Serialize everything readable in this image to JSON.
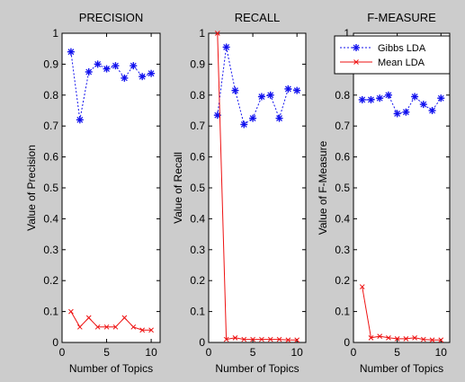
{
  "chart_data": [
    {
      "type": "line",
      "title": "PRECISION",
      "xlabel": "Number of Topics",
      "ylabel": "Value of Precision",
      "xlim": [
        0,
        11
      ],
      "ylim": [
        0,
        1
      ],
      "xticks": [
        "0",
        "5",
        "10"
      ],
      "yticks": [
        "0",
        "0.1",
        "0.2",
        "0.3",
        "0.4",
        "0.5",
        "0.6",
        "0.7",
        "0.8",
        "0.9",
        "1"
      ],
      "x": [
        1,
        2,
        3,
        4,
        5,
        6,
        7,
        8,
        9,
        10
      ],
      "series": [
        {
          "name": "Gibbs LDA",
          "color": "#1010ee",
          "style": "dotted",
          "marker": "star",
          "values": [
            0.94,
            0.72,
            0.875,
            0.9,
            0.885,
            0.895,
            0.855,
            0.895,
            0.86,
            0.87
          ]
        },
        {
          "name": "Mean LDA",
          "color": "#ee1111",
          "style": "solid",
          "marker": "x",
          "values": [
            0.1,
            0.05,
            0.08,
            0.05,
            0.05,
            0.05,
            0.08,
            0.05,
            0.04,
            0.04
          ]
        }
      ]
    },
    {
      "type": "line",
      "title": "RECALL",
      "xlabel": "Number of Topics",
      "ylabel": "Value of Recall",
      "xlim": [
        0,
        11
      ],
      "ylim": [
        0,
        1
      ],
      "xticks": [
        "0",
        "5",
        "10"
      ],
      "yticks": [
        "0",
        "0.1",
        "0.2",
        "0.3",
        "0.4",
        "0.5",
        "0.6",
        "0.7",
        "0.8",
        "0.9",
        "1"
      ],
      "x": [
        1,
        2,
        3,
        4,
        5,
        6,
        7,
        8,
        9,
        10
      ],
      "series": [
        {
          "name": "Gibbs LDA",
          "color": "#1010ee",
          "style": "dotted",
          "marker": "star",
          "values": [
            0.735,
            0.955,
            0.815,
            0.705,
            0.725,
            0.795,
            0.8,
            0.725,
            0.82,
            0.815
          ]
        },
        {
          "name": "Mean LDA",
          "color": "#ee1111",
          "style": "solid",
          "marker": "x",
          "values": [
            1.0,
            0.01,
            0.015,
            0.01,
            0.01,
            0.01,
            0.01,
            0.01,
            0.008,
            0.008
          ]
        }
      ]
    },
    {
      "type": "line",
      "title": "F-MEASURE",
      "xlabel": "Number of Topics",
      "ylabel": "Value of F-Measure",
      "xlim": [
        0,
        11
      ],
      "ylim": [
        0,
        1
      ],
      "xticks": [
        "0",
        "5",
        "10"
      ],
      "yticks": [
        "0",
        "0.1",
        "0.2",
        "0.3",
        "0.4",
        "0.5",
        "0.6",
        "0.7",
        "0.8",
        "0.9",
        "1"
      ],
      "x": [
        1,
        2,
        3,
        4,
        5,
        6,
        7,
        8,
        9,
        10
      ],
      "legend": {
        "placement": "top-right",
        "entries": [
          "Gibbs LDA",
          "Mean LDA"
        ]
      },
      "series": [
        {
          "name": "Gibbs LDA",
          "color": "#1010ee",
          "style": "dotted",
          "marker": "star",
          "values": [
            0.785,
            0.785,
            0.79,
            0.8,
            0.74,
            0.745,
            0.795,
            0.77,
            0.75,
            0.79
          ]
        },
        {
          "name": "Mean LDA",
          "color": "#ee1111",
          "style": "solid",
          "marker": "x",
          "values": [
            0.18,
            0.015,
            0.02,
            0.015,
            0.012,
            0.012,
            0.015,
            0.01,
            0.008,
            0.008
          ]
        }
      ]
    }
  ]
}
